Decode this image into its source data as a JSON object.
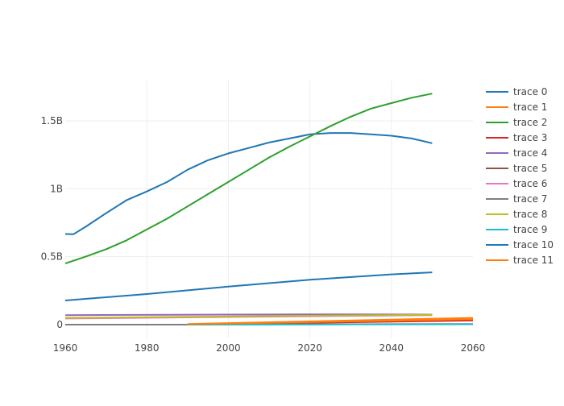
{
  "chart_data": {
    "type": "line",
    "title": "",
    "xlabel": "",
    "ylabel": "",
    "xlim": [
      1960,
      2060
    ],
    "ylim": [
      -0.1,
      1.8
    ],
    "x_ticks": [
      1960,
      1980,
      2000,
      2020,
      2040,
      2060
    ],
    "x_tick_labels": [
      "1960",
      "1980",
      "2000",
      "2020",
      "2040",
      "2060"
    ],
    "y_ticks": [
      0,
      0.5,
      1,
      1.5
    ],
    "y_tick_labels": [
      "0",
      "0.5B",
      "1B",
      "1.5B"
    ],
    "y_unit": "billions",
    "grid": true,
    "legend_position": "right",
    "series": [
      {
        "name": "trace 0",
        "color": "#1f77b4",
        "x": [
          1960,
          1962,
          1965,
          1970,
          1975,
          1980,
          1985,
          1990,
          1995,
          2000,
          2005,
          2010,
          2015,
          2020,
          2025,
          2030,
          2035,
          2040,
          2045,
          2050
        ],
        "y": [
          0.667,
          0.665,
          0.72,
          0.82,
          0.915,
          0.98,
          1.05,
          1.14,
          1.21,
          1.26,
          1.3,
          1.34,
          1.37,
          1.4,
          1.41,
          1.41,
          1.4,
          1.39,
          1.37,
          1.335
        ]
      },
      {
        "name": "trace 1",
        "color": "#ff7f0e",
        "x": [
          1990,
          2060
        ],
        "y": [
          0.005,
          0.05
        ]
      },
      {
        "name": "trace 2",
        "color": "#2ca02c",
        "x": [
          1960,
          1965,
          1970,
          1975,
          1980,
          1985,
          1990,
          1995,
          2000,
          2005,
          2010,
          2015,
          2020,
          2025,
          2030,
          2035,
          2040,
          2045,
          2050
        ],
        "y": [
          0.45,
          0.5,
          0.555,
          0.62,
          0.7,
          0.78,
          0.87,
          0.96,
          1.05,
          1.14,
          1.23,
          1.31,
          1.385,
          1.46,
          1.53,
          1.59,
          1.63,
          1.67,
          1.7
        ]
      },
      {
        "name": "trace 3",
        "color": "#d62728",
        "x": [
          1990,
          2060
        ],
        "y": [
          0.002,
          0.03
        ]
      },
      {
        "name": "trace 4",
        "color": "#9467bd",
        "x": [
          1960,
          2000,
          2030,
          2050
        ],
        "y": [
          0.07,
          0.074,
          0.076,
          0.074
        ]
      },
      {
        "name": "trace 5",
        "color": "#8c564b",
        "x": [
          1990,
          2060
        ],
        "y": [
          0.001,
          0.004
        ]
      },
      {
        "name": "trace 6",
        "color": "#e377c2",
        "x": [
          1960,
          2050
        ],
        "y": [
          0.045,
          0.07
        ]
      },
      {
        "name": "trace 7",
        "color": "#7f7f7f",
        "x": [
          1960,
          1990
        ],
        "y": [
          0,
          0
        ]
      },
      {
        "name": "trace 8",
        "color": "#bcbd22",
        "x": [
          1960,
          2000,
          2050
        ],
        "y": [
          0.05,
          0.06,
          0.073
        ]
      },
      {
        "name": "trace 9",
        "color": "#17becf",
        "x": [
          1990,
          2060
        ],
        "y": [
          0.0,
          0.003
        ]
      },
      {
        "name": "trace 10",
        "color": "#1f77b4",
        "x": [
          1960,
          1980,
          2000,
          2020,
          2040,
          2050
        ],
        "y": [
          0.178,
          0.225,
          0.28,
          0.33,
          0.37,
          0.385
        ]
      },
      {
        "name": "trace 11",
        "color": "#ff7f0e",
        "x": [
          1990,
          2060
        ],
        "y": [
          0.003,
          0.04
        ]
      }
    ]
  }
}
